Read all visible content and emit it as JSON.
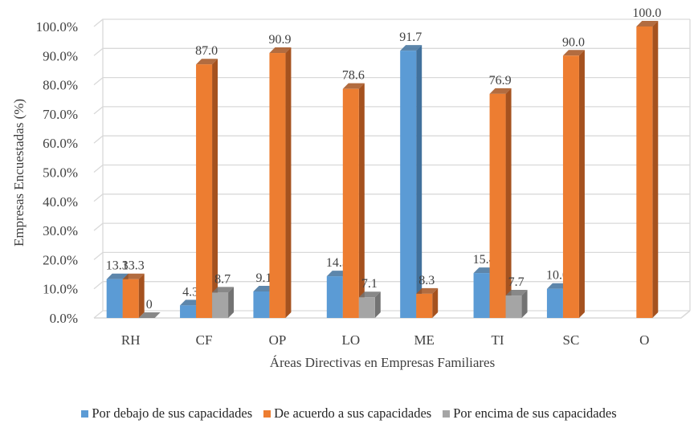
{
  "chart_data": {
    "type": "bar",
    "style": "3d-clustered-column",
    "title": "",
    "xlabel": "Áreas Directivas en Empresas Familiares",
    "ylabel": "Empresas Encuestadas (%)",
    "ylim": [
      0,
      100
    ],
    "yticks": [
      "0.0%",
      "10.0%",
      "20.0%",
      "30.0%",
      "40.0%",
      "50.0%",
      "60.0%",
      "70.0%",
      "80.0%",
      "90.0%",
      "100.0%"
    ],
    "grid": true,
    "legend_position": "bottom",
    "categories": [
      "RH",
      "CF",
      "OP",
      "LO",
      "ME",
      "TI",
      "SC",
      "O"
    ],
    "series": [
      {
        "name": "Por debajo de sus capacidades",
        "color": "#5B9BD5",
        "side": "#41719C",
        "values": [
          13.3,
          4.3,
          9.1,
          14.3,
          91.7,
          15.4,
          10.0,
          null
        ],
        "labels": [
          "13.3",
          "4.3",
          "9.1",
          "14.3",
          "91.7",
          "15.4",
          "10.0",
          ""
        ]
      },
      {
        "name": "De acuerdo a sus capacidades",
        "color": "#ED7D31",
        "side": "#A5521F",
        "values": [
          13.3,
          87.0,
          90.9,
          78.6,
          8.3,
          76.9,
          90.0,
          100.0
        ],
        "labels": [
          "13.3",
          "87.0",
          "90.9",
          "78.6",
          "8.3",
          "76.9",
          "90.0",
          "100.0"
        ]
      },
      {
        "name": "Por encima de sus capacidades",
        "color": "#A5A5A5",
        "side": "#737373",
        "values": [
          0,
          8.7,
          null,
          7.1,
          null,
          7.7,
          null,
          null
        ],
        "labels": [
          "0",
          "8.7",
          "",
          "7.1",
          "",
          "7.7",
          "",
          ""
        ]
      }
    ]
  }
}
